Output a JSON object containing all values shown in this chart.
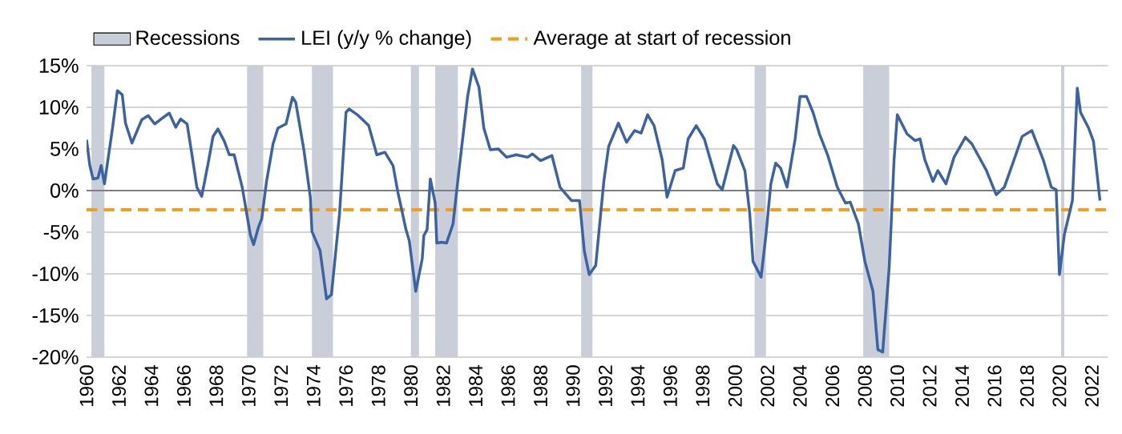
{
  "chart_data": {
    "type": "line",
    "x": [
      1960.0,
      1960.2,
      1960.4,
      1960.7,
      1960.9,
      1961.1,
      1961.6,
      1961.9,
      1962.2,
      1962.4,
      1962.8,
      1963.4,
      1963.8,
      1964.2,
      1964.6,
      1965.1,
      1965.5,
      1965.8,
      1966.2,
      1966.5,
      1966.8,
      1967.1,
      1967.5,
      1967.8,
      1968.1,
      1968.5,
      1968.8,
      1969.1,
      1969.6,
      1970.1,
      1970.3,
      1970.6,
      1970.8,
      1971.1,
      1971.5,
      1971.8,
      1972.3,
      1972.7,
      1972.9,
      1973.4,
      1973.8,
      1973.9,
      1974.4,
      1974.8,
      1975.1,
      1975.6,
      1976.0,
      1976.2,
      1976.7,
      1977.4,
      1977.9,
      1978.4,
      1978.9,
      1979.2,
      1979.7,
      1979.9,
      1980.3,
      1980.7,
      1980.8,
      1981.0,
      1981.2,
      1981.5,
      1981.6,
      1981.9,
      1982.2,
      1982.6,
      1983.0,
      1983.5,
      1983.8,
      1984.2,
      1984.5,
      1984.9,
      1985.4,
      1985.9,
      1986.5,
      1987.2,
      1987.5,
      1988.0,
      1988.7,
      1989.2,
      1989.9,
      1990.4,
      1990.7,
      1991.0,
      1991.4,
      1991.9,
      1992.2,
      1992.8,
      1993.3,
      1993.8,
      1994.2,
      1994.6,
      1995.0,
      1995.5,
      1995.8,
      1996.3,
      1996.8,
      1997.1,
      1997.6,
      1998.1,
      1998.9,
      1999.2,
      1999.9,
      2000.1,
      2000.6,
      2000.9,
      2001.1,
      2001.6,
      2001.9,
      2002.2,
      2002.5,
      2002.8,
      2003.2,
      2003.7,
      2004.0,
      2004.4,
      2004.8,
      2005.2,
      2005.7,
      2006.3,
      2006.8,
      2007.1,
      2007.6,
      2008.0,
      2008.5,
      2008.8,
      2009.1,
      2009.5,
      2009.8,
      2010.0,
      2010.6,
      2011.1,
      2011.4,
      2011.7,
      2012.2,
      2012.5,
      2013.0,
      2013.5,
      2014.2,
      2014.6,
      2015.5,
      2016.1,
      2016.6,
      2017.2,
      2017.7,
      2018.3,
      2019.0,
      2019.5,
      2019.8,
      2020.0,
      2020.3,
      2020.8,
      2021.1,
      2021.3,
      2021.8,
      2022.1,
      2022.5
    ],
    "series": [
      {
        "name": "LEI (y/y % change)",
        "color": "#3b62a3",
        "values": [
          6.1,
          3,
          1.4,
          1.5,
          3,
          0.8,
          7.5,
          12,
          11.5,
          8.1,
          5.7,
          8.5,
          9.0,
          8,
          8.6,
          9.3,
          7.6,
          8.6,
          8,
          4.3,
          0.4,
          -0.7,
          3.3,
          6.5,
          7.4,
          5.9,
          4.3,
          4.3,
          0.4,
          -5.3,
          -6.5,
          -4.4,
          -3.4,
          1.1,
          5.6,
          7.5,
          8,
          11.2,
          10.6,
          4.9,
          -0.8,
          -4.9,
          -7.2,
          -13,
          -12.5,
          -2.8,
          9.4,
          9.8,
          9.1,
          7.8,
          4.3,
          4.6,
          3,
          -0.2,
          -4.7,
          -6,
          -12.1,
          -8.2,
          -5.4,
          -4.7,
          1.4,
          -1.5,
          -6.3,
          -6.2,
          -6.3,
          -4,
          3,
          11.3,
          14.6,
          12.4,
          7.5,
          4.9,
          5,
          4,
          4.3,
          4,
          4.4,
          3.6,
          4.2,
          0.4,
          -1.2,
          -1.2,
          -7.3,
          -10.1,
          -9,
          1.1,
          5.3,
          8.1,
          5.8,
          7.2,
          6.9,
          9.1,
          7.8,
          3.7,
          -0.8,
          2.4,
          2.7,
          6.2,
          7.8,
          6.2,
          0.8,
          0.1,
          5.4,
          4.9,
          2.4,
          -2.8,
          -8.5,
          -10.4,
          -5.3,
          0.8,
          3.3,
          2.7,
          0.4,
          6.2,
          11.3,
          11.3,
          9.4,
          6.8,
          4.3,
          0.4,
          -1.5,
          -1.4,
          -4,
          -8.5,
          -12.1,
          -19.1,
          -19.4,
          -9.2,
          3.7,
          9.1,
          6.8,
          6,
          6.2,
          3.7,
          1.1,
          2.4,
          0.8,
          4,
          6.4,
          5.6,
          2.4,
          -0.5,
          0.4,
          3.7,
          6.5,
          7.2,
          3.7,
          0.4,
          0.1,
          -10.1,
          -5.3,
          -1.2,
          12.3,
          9.4,
          7.5,
          5.9,
          -1.2
        ]
      }
    ],
    "xlim": [
      1960,
      2023
    ],
    "xticks": [
      1960,
      1962,
      1964,
      1966,
      1968,
      1970,
      1972,
      1974,
      1976,
      1978,
      1980,
      1982,
      1984,
      1986,
      1988,
      1990,
      1992,
      1994,
      1996,
      1998,
      2000,
      2002,
      2004,
      2006,
      2008,
      2010,
      2012,
      2014,
      2016,
      2018,
      2020,
      2022
    ],
    "ylim": [
      -20,
      15
    ],
    "yticks": [
      {
        "value": -20,
        "label": "-20%"
      },
      {
        "value": -15,
        "label": "-15%"
      },
      {
        "value": -10,
        "label": "-10%"
      },
      {
        "value": -5,
        "label": "-5%"
      },
      {
        "value": 0,
        "label": "0%"
      },
      {
        "value": 5,
        "label": "5%"
      },
      {
        "value": 10,
        "label": "10%"
      },
      {
        "value": 15,
        "label": "15%"
      }
    ],
    "bands": [
      {
        "axis": "x",
        "from": 1960.3,
        "to": 1961.1,
        "label": "Recessions",
        "color": "#c9ced8"
      },
      {
        "axis": "x",
        "from": 1969.9,
        "to": 1970.9,
        "color": "#c9ced8"
      },
      {
        "axis": "x",
        "from": 1973.9,
        "to": 1975.2,
        "color": "#c9ced8"
      },
      {
        "axis": "x",
        "from": 1980.0,
        "to": 1980.5,
        "color": "#c9ced8"
      },
      {
        "axis": "x",
        "from": 1981.5,
        "to": 1982.9,
        "color": "#c9ced8"
      },
      {
        "axis": "x",
        "from": 1990.5,
        "to": 1991.2,
        "color": "#c9ced8"
      },
      {
        "axis": "x",
        "from": 2001.2,
        "to": 2001.9,
        "color": "#c9ced8"
      },
      {
        "axis": "x",
        "from": 2007.9,
        "to": 2009.5,
        "color": "#c9ced8"
      },
      {
        "axis": "x",
        "from": 2020.1,
        "to": 2020.3,
        "color": "#c9ced8"
      }
    ],
    "ref_lines": [
      {
        "axis": "y",
        "value": 0,
        "color": "#7f7f7f",
        "line_style": "solid"
      },
      {
        "axis": "y",
        "value": -2.3,
        "label": "Average at start of recession",
        "color": "#f0a020",
        "line_style": "dashed"
      }
    ],
    "grid": "y",
    "legend": "top left",
    "marker": "none",
    "line_style": "solid"
  }
}
